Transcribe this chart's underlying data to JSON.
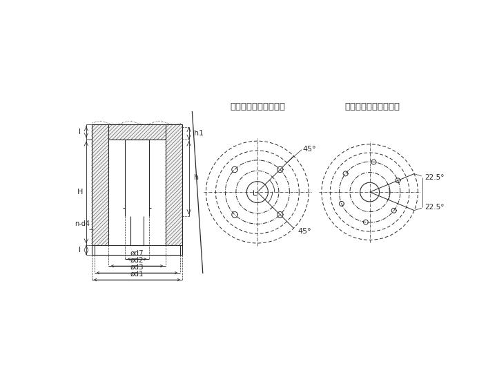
{
  "bg_color": "#ffffff",
  "line_color": "#2a2a2a",
  "title1": "全关时与电机轴线平行",
  "title2": "全关时与电机轴线平行",
  "dim_labels": [
    "ød7",
    "ød2",
    "ød3",
    "ød1"
  ],
  "angle1": "45°",
  "angle2": "45°",
  "angle3": "22.5°",
  "angle4": "22.5°",
  "label_l1": "l",
  "label_H": "H",
  "label_l2": "l",
  "label_h1": "h1",
  "label_h": "h",
  "label_nd4": "n-d4"
}
